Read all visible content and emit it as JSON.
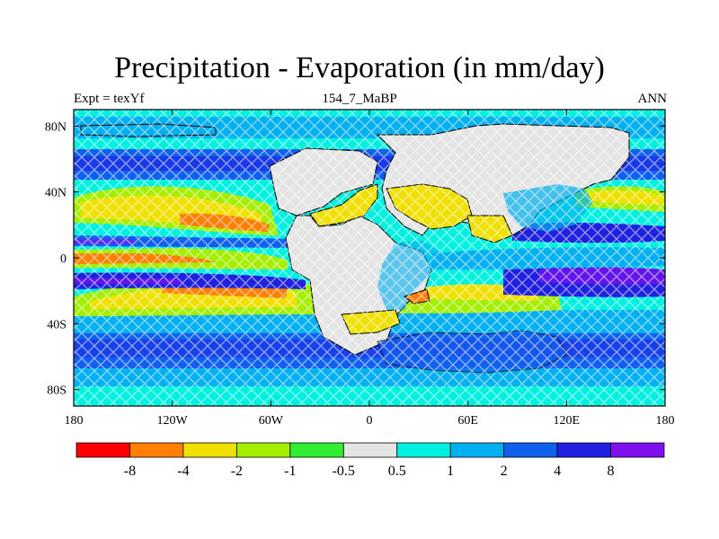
{
  "title": "Precipitation - Evaporation (in mm/day)",
  "subtitle_left": "Expt = texYf",
  "subtitle_center": "154_7_MaBP",
  "subtitle_right": "ANN",
  "map": {
    "type": "filled-contour-map",
    "projection": "cylindrical-equidistant",
    "x_ticks": [
      "180",
      "120W",
      "60W",
      "0",
      "60E",
      "120E",
      "180"
    ],
    "y_ticks": [
      "80N",
      "40N",
      "0",
      "40S",
      "80S"
    ],
    "land_fill": "#e8e8e8",
    "stippling": "crosshatch"
  },
  "colorbar": {
    "colors": [
      "#ff0000",
      "#ff7f00",
      "#f0e000",
      "#a5ee00",
      "#32ee32",
      "#e4e4e4",
      "#00f0e0",
      "#00b0f0",
      "#1060f0",
      "#2020e0",
      "#8010f0"
    ],
    "labels": [
      "-8",
      "-4",
      "-2",
      "-1",
      "-0.5",
      "0.5",
      "1",
      "2",
      "4",
      "8"
    ]
  }
}
